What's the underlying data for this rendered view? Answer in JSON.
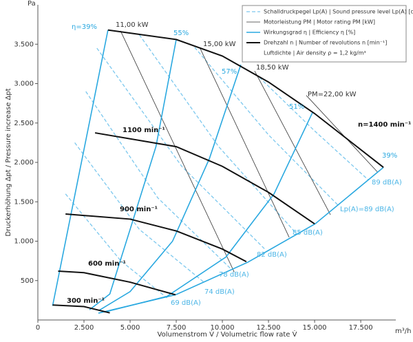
{
  "chart_data": {
    "type": "line",
    "x_label": "Volumenstrom V̇ / Volumetric flow rate V̇",
    "x_unit": "m³/h",
    "y_label": "Druckerhöhung Δpt / Pressure increase Δpt",
    "y_unit": "Pa",
    "xlim": [
      0,
      19400
    ],
    "ylim": [
      0,
      4000
    ],
    "xticks": [
      0,
      {
        "value": 2500,
        "label": "2.500"
      },
      {
        "value": 5000,
        "label": "5.000"
      },
      {
        "value": 7500,
        "label": "7.500"
      },
      {
        "value": 10000,
        "label": "10.000"
      },
      {
        "value": 12500,
        "label": "12.500"
      },
      {
        "value": 15000,
        "label": "15.000"
      },
      {
        "value": 17500,
        "label": "17.500"
      }
    ],
    "yticks": [
      500,
      {
        "value": 1000,
        "label": "1.000"
      },
      {
        "value": 1500,
        "label": "1.500"
      },
      {
        "value": 2000,
        "label": "2.000"
      },
      {
        "value": 2500,
        "label": "2.500"
      },
      {
        "value": 3000,
        "label": "3.000"
      },
      {
        "value": 3500,
        "label": "3.500"
      }
    ],
    "legend": [
      "Schalldruckpegel Lp(A) | Sound pressure level Lp(A) [dB(A)]",
      "Motorleistung PM | Motor rating PM [kW]",
      "Wirkungsgrad η | Efficiency η [%]",
      "Drehzahl n | Number of revolutions n [min⁻¹]",
      "Luftdichte | Air density ρ = 1,2 kg/m³"
    ],
    "colors": {
      "speed": "#111111",
      "power": "#333333",
      "efficiency": "#29a8e0",
      "sound": "#7cc8ee"
    },
    "speed_curves": [
      {
        "label": "300 min⁻¹",
        "x": [
          800,
          2500,
          3900
        ],
        "y": [
          190,
          170,
          90
        ]
      },
      {
        "label": "600 min⁻¹",
        "x": [
          1100,
          2500,
          5000,
          7460
        ],
        "y": [
          620,
          600,
          480,
          320
        ]
      },
      {
        "label": "900 min⁻¹",
        "x": [
          1500,
          5000,
          7500,
          10000,
          11300
        ],
        "y": [
          1345,
          1280,
          1130,
          900,
          740
        ]
      },
      {
        "label": "1100 min⁻¹",
        "x": [
          3100,
          7500,
          10000,
          12500,
          15000
        ],
        "y": [
          2375,
          2200,
          1950,
          1620,
          1220
        ]
      },
      {
        "label": "n=1400 min⁻¹",
        "x": [
          3800,
          7500,
          10000,
          12500,
          15000,
          18730
        ],
        "y": [
          3680,
          3560,
          3350,
          3020,
          2620,
          1937
        ]
      }
    ],
    "power_lines": [
      {
        "label": "11,00 kW",
        "x": [
          4480,
          10640
        ],
        "y": [
          3670,
          610
        ]
      },
      {
        "label": "15,00 kW",
        "x": [
          8770,
          13620
        ],
        "y": [
          3460,
          1050
        ]
      },
      {
        "label": "18,50 kW",
        "x": [
          11750,
          15860
        ],
        "y": [
          3160,
          1335
        ]
      },
      {
        "label": "PM=22,00 kW",
        "x": [
          14550,
          18400
        ],
        "y": [
          2850,
          1880
        ]
      }
    ],
    "efficiency_lines": [
      {
        "label": "η=39%",
        "x": [
          800,
          3800
        ],
        "y": [
          180,
          3680
        ]
      },
      {
        "label": "55%",
        "x": [
          7500,
          6400,
          5000,
          3900,
          2800
        ],
        "y": [
          3560,
          2200,
          1150,
          330,
          130
        ]
      },
      {
        "label": "57%",
        "x": [
          11000,
          9300,
          7300,
          5000,
          3300
        ],
        "y": [
          3240,
          2050,
          1000,
          360,
          120
        ]
      },
      {
        "label": "51%",
        "x": [
          14900,
          12800,
          10200,
          7000,
          3600
        ],
        "y": [
          2640,
          1600,
          800,
          300,
          100
        ]
      },
      {
        "label": "39%",
        "x": [
          18730,
          15040,
          11380,
          7500,
          3280
        ],
        "y": [
          1937,
          1222,
          733,
          323,
          87
        ]
      }
    ],
    "sound_lines": [
      {
        "label": "69 dB(A)",
        "x": [
          1500,
          4500,
          7000
        ],
        "y": [
          1600,
          750,
          280
        ]
      },
      {
        "label": "74 dB(A)",
        "x": [
          2000,
          5500,
          9000
        ],
        "y": [
          2250,
          1150,
          480
        ]
      },
      {
        "label": "78 dB(A)",
        "x": [
          2600,
          6500,
          10500
        ],
        "y": [
          2900,
          1550,
          640
        ]
      },
      {
        "label": "82 dB(A)",
        "x": [
          3200,
          7800,
          12300
        ],
        "y": [
          3450,
          1950,
          900
        ]
      },
      {
        "label": "85 dB(A)",
        "x": [
          5500,
          9800,
          14000
        ],
        "y": [
          3620,
          2200,
          1100
        ]
      },
      {
        "label": "Lp(A)=89 dB(A)",
        "x": [
          8500,
          12500,
          16300
        ],
        "y": [
          3460,
          2350,
          1450
        ]
      },
      {
        "label": "89 dB(A)",
        "x": [
          12000,
          15000,
          17900
        ],
        "y": [
          3080,
          2400,
          1780
        ]
      }
    ]
  }
}
